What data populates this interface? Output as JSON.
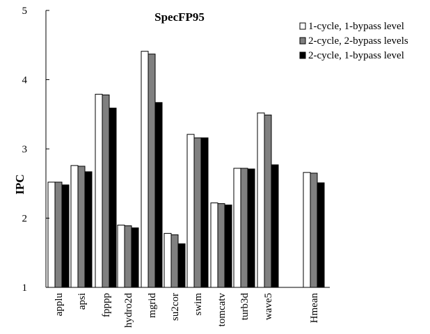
{
  "chart_data": {
    "type": "bar",
    "title": "SpecFP95",
    "xlabel": "",
    "ylabel": "IPC",
    "ylim": [
      1,
      5
    ],
    "yticks": [
      "1",
      "2",
      "3",
      "4",
      "5"
    ],
    "grid": false,
    "legend_position": "top-right",
    "categories": [
      "applu",
      "apsi",
      "fpppp",
      "hydro2d",
      "mgrid",
      "su2cor",
      "swim",
      "tomcatv",
      "turb3d",
      "wave5",
      "Hmean"
    ],
    "series": [
      {
        "name": "1-cycle, 1-bypass level",
        "color": "#ffffff",
        "values": [
          2.52,
          2.76,
          3.79,
          1.9,
          4.41,
          1.78,
          3.21,
          2.22,
          2.72,
          3.52,
          2.66
        ]
      },
      {
        "name": "2-cycle, 2-bypass levels",
        "color": "#808080",
        "values": [
          2.52,
          2.75,
          3.78,
          1.89,
          4.37,
          1.76,
          3.16,
          2.21,
          2.72,
          3.49,
          2.65
        ]
      },
      {
        "name": "2-cycle, 1-bypass level",
        "color": "#000000",
        "values": [
          2.48,
          2.67,
          3.59,
          1.86,
          3.67,
          1.63,
          3.16,
          2.19,
          2.71,
          2.77,
          2.51
        ]
      }
    ]
  }
}
